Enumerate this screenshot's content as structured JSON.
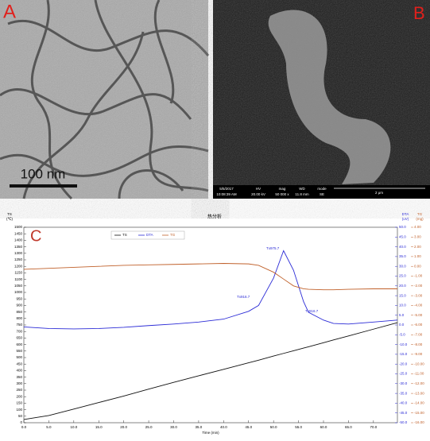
{
  "panels": {
    "A": {
      "label": "A",
      "scale_bar": "100 nm"
    },
    "B": {
      "label": "B",
      "info": [
        "5/5/2017",
        "10:08:39 AM",
        "HV",
        "20.00 kV",
        "mag",
        "50 000 x",
        "WD",
        "11.8 mm",
        "mode",
        "SE"
      ],
      "scale_bar": "2 μm"
    }
  },
  "chart_data": {
    "type": "line",
    "panel_label": "C",
    "title": "热分析",
    "x_label": "Time (min)",
    "y_label": [
      "TS",
      "(℃)"
    ],
    "y2_label": [
      "DTA",
      "(uV)"
    ],
    "y3_label": [
      "TG",
      "(mg)"
    ],
    "xlim": [
      0,
      74.8
    ],
    "xticks": [
      {
        "value": 0,
        "label": "0.0"
      },
      {
        "value": 5,
        "label": "5.0"
      },
      {
        "value": 10,
        "label": "10.0"
      },
      {
        "value": 15,
        "label": "15.0"
      },
      {
        "value": 20,
        "label": "20.0"
      },
      {
        "value": 25,
        "label": "25.0"
      },
      {
        "value": 30,
        "label": "30.0"
      },
      {
        "value": 35,
        "label": "35.0"
      },
      {
        "value": 40,
        "label": "40.0"
      },
      {
        "value": 45,
        "label": "45.0"
      },
      {
        "value": 50,
        "label": "50.0"
      },
      {
        "value": 55,
        "label": "55.0"
      },
      {
        "value": 60,
        "label": "60.0"
      },
      {
        "value": 65,
        "label": "65.0"
      },
      {
        "value": 70,
        "label": "70.0"
      }
    ],
    "ylim": [
      0,
      1500
    ],
    "yticks": [
      0,
      50,
      100,
      150,
      200,
      250,
      300,
      350,
      400,
      450,
      500,
      550,
      600,
      650,
      700,
      750,
      800,
      850,
      900,
      950,
      1000,
      1050,
      1100,
      1150,
      1200,
      1250,
      1300,
      1350,
      1400,
      1450,
      1500
    ],
    "y2lim": [
      -50,
      50
    ],
    "y2ticks": [
      {
        "value": 50,
        "label": "50.0"
      },
      {
        "value": 45,
        "label": "45.0"
      },
      {
        "value": 40,
        "label": "40.0"
      },
      {
        "value": 35,
        "label": "35.0"
      },
      {
        "value": 30,
        "label": "30.0"
      },
      {
        "value": 25,
        "label": "25.0"
      },
      {
        "value": 20,
        "label": "20.0"
      },
      {
        "value": 15,
        "label": "15.0"
      },
      {
        "value": 10,
        "label": "10.0"
      },
      {
        "value": 5,
        "label": "5.0"
      },
      {
        "value": 0,
        "label": "0.0"
      },
      {
        "value": -5,
        "label": "-5.0"
      },
      {
        "value": -10,
        "label": "-10.0"
      },
      {
        "value": -15,
        "label": "-15.0"
      },
      {
        "value": -20,
        "label": "-20.0"
      },
      {
        "value": -25,
        "label": "-25.0"
      },
      {
        "value": -30,
        "label": "-30.0"
      },
      {
        "value": -35,
        "label": "-35.0"
      },
      {
        "value": -40,
        "label": "-40.0"
      },
      {
        "value": -45,
        "label": "-45.0"
      },
      {
        "value": -50,
        "label": "-50.0"
      }
    ],
    "y3lim": [
      -16,
      4
    ],
    "y3ticks": [
      {
        "value": 4,
        "label": "4.00"
      },
      {
        "value": 3,
        "label": "3.00"
      },
      {
        "value": 2,
        "label": "2.00"
      },
      {
        "value": 1,
        "label": "1.00"
      },
      {
        "value": 0,
        "label": "0.00"
      },
      {
        "value": -1,
        "label": "-1.00"
      },
      {
        "value": -2,
        "label": "-2.00"
      },
      {
        "value": -3,
        "label": "-3.00"
      },
      {
        "value": -4,
        "label": "-4.00"
      },
      {
        "value": -5,
        "label": "-5.00"
      },
      {
        "value": -6,
        "label": "-6.00"
      },
      {
        "value": -7,
        "label": "-7.00"
      },
      {
        "value": -8,
        "label": "-8.00"
      },
      {
        "value": -9,
        "label": "-9.00"
      },
      {
        "value": -10,
        "label": "-10.00"
      },
      {
        "value": -11,
        "label": "-11.00"
      },
      {
        "value": -12,
        "label": "-12.00"
      },
      {
        "value": -13,
        "label": "-13.00"
      },
      {
        "value": -14,
        "label": "-14.00"
      },
      {
        "value": -15,
        "label": "-15.00"
      },
      {
        "value": -16,
        "label": "-16.00"
      }
    ],
    "x": [
      0,
      5,
      10,
      15,
      20,
      25,
      30,
      35,
      40,
      45,
      47,
      50,
      52,
      54,
      56,
      57,
      60,
      62,
      65,
      70,
      74.8
    ],
    "series": [
      {
        "name": "TS",
        "color": "#111111",
        "axis": "y",
        "values": [
          25,
          55,
          105,
          155,
          205,
          258,
          310,
          360,
          410,
          460,
          480,
          512,
          532,
          552,
          573,
          583,
          614,
          635,
          666,
          718,
          768
        ]
      },
      {
        "name": "DTA",
        "color": "#2b2bd6",
        "axis": "y2",
        "values": [
          -1,
          -1.8,
          -2,
          -1.8,
          -1.2,
          -0.3,
          0.5,
          1.5,
          3,
          7,
          10,
          24,
          38,
          28,
          12,
          6.5,
          2.5,
          0.8,
          0.5,
          1.5,
          2.5
        ]
      },
      {
        "name": "TG",
        "color": "#c0602a",
        "axis": "y3",
        "values": [
          -0.3,
          -0.2,
          -0.1,
          0,
          0.1,
          0.15,
          0.2,
          0.25,
          0.3,
          0.25,
          0.1,
          -0.6,
          -1.3,
          -2,
          -2.3,
          -2.35,
          -2.4,
          -2.4,
          -2.35,
          -2.3,
          -2.3
        ]
      }
    ],
    "annotations": [
      "Tx916.7",
      "Tx975.7",
      "Tx816.7"
    ]
  }
}
